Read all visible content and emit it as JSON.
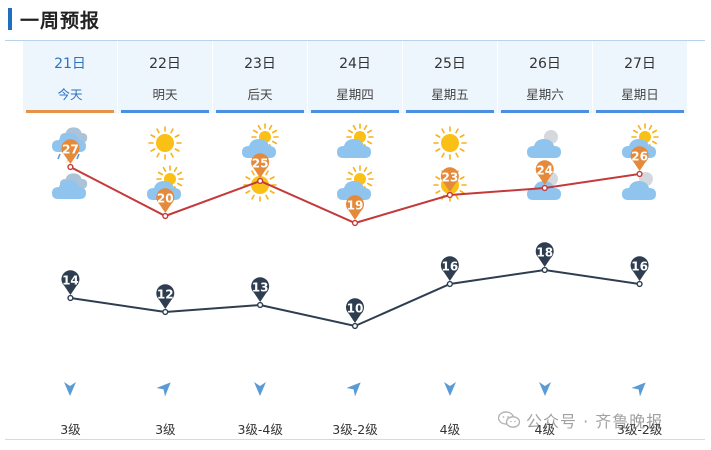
{
  "header": {
    "title": "一周预报"
  },
  "days": [
    {
      "date": "21日",
      "name": "今天",
      "today": true,
      "day_icon": "thunder-rain-icon",
      "night_icon": "cloudy-icon",
      "high": "27",
      "low": "14",
      "wind_dir": "north",
      "wind_level": "3级"
    },
    {
      "date": "22日",
      "name": "明天",
      "today": false,
      "day_icon": "sunny-icon",
      "night_icon": "partly-cloudy-icon",
      "high": "20",
      "low": "12",
      "wind_dir": "northeast",
      "wind_level": "3级"
    },
    {
      "date": "23日",
      "name": "后天",
      "today": false,
      "day_icon": "partly-cloudy-icon",
      "night_icon": "sunny-icon",
      "high": "25",
      "low": "13",
      "wind_dir": "north",
      "wind_level": "3级-4级"
    },
    {
      "date": "24日",
      "name": "星期四",
      "today": false,
      "day_icon": "partly-cloudy-icon",
      "night_icon": "partly-cloudy-icon",
      "high": "19",
      "low": "10",
      "wind_dir": "northeast",
      "wind_level": "3级-2级"
    },
    {
      "date": "25日",
      "name": "星期五",
      "today": false,
      "day_icon": "sunny-icon",
      "night_icon": "sunny-icon",
      "high": "23",
      "low": "16",
      "wind_dir": "north",
      "wind_level": "4级"
    },
    {
      "date": "26日",
      "name": "星期六",
      "today": false,
      "day_icon": "overcast-icon",
      "night_icon": "overcast-icon",
      "high": "24",
      "low": "18",
      "wind_dir": "north",
      "wind_level": "4级"
    },
    {
      "date": "27日",
      "name": "星期日",
      "today": false,
      "day_icon": "partly-cloudy-icon",
      "night_icon": "overcast-icon",
      "high": "26",
      "low": "16",
      "wind_dir": "northeast",
      "wind_level": "3级-2级"
    }
  ],
  "colors": {
    "high_line": "#c43a3a",
    "high_pin": "#e58a3a",
    "low_line": "#2e3d4f",
    "low_pin": "#2e3d4f",
    "today_accent": "#e89149",
    "tab_accent": "#4a8fe0",
    "wind_arrow": "#5b9bd5"
  },
  "watermark": {
    "text": "公众号 · 齐鲁晚报"
  }
}
